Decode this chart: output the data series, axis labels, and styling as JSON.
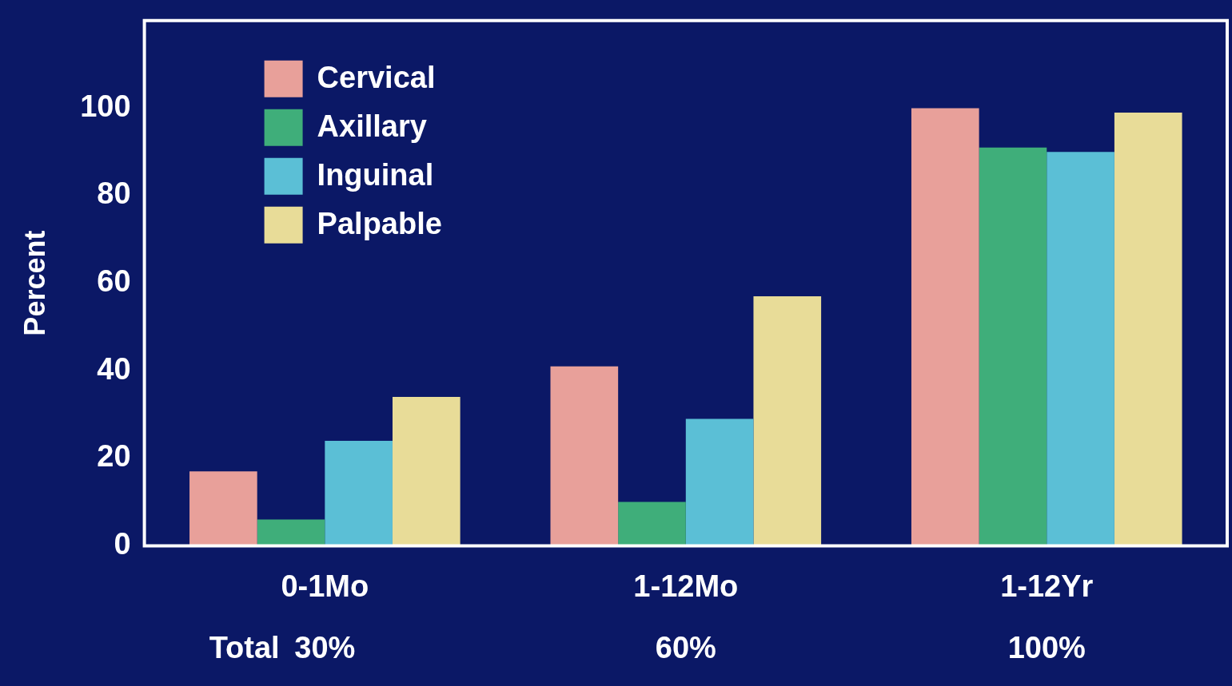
{
  "chart_data": {
    "type": "bar",
    "ylabel": "Percent",
    "categories": [
      "0-1Mo",
      "1-12Mo",
      "1-12Yr"
    ],
    "series": [
      {
        "name": "Cervical",
        "color": "#e8a09a",
        "values": [
          17,
          41,
          100
        ]
      },
      {
        "name": "Axillary",
        "color": "#3fae7a",
        "values": [
          6,
          10,
          91
        ]
      },
      {
        "name": "Inguinal",
        "color": "#5bbfd6",
        "values": [
          24,
          29,
          90
        ]
      },
      {
        "name": "Palpable",
        "color": "#e8dc98",
        "values": [
          34,
          57,
          99
        ]
      }
    ],
    "ylim": [
      0,
      120
    ],
    "yticks": [
      0,
      20,
      40,
      60,
      80,
      100
    ],
    "grid": false,
    "legend": "top left",
    "annotations": [
      "Total",
      "30%",
      "60%",
      "100%"
    ]
  }
}
